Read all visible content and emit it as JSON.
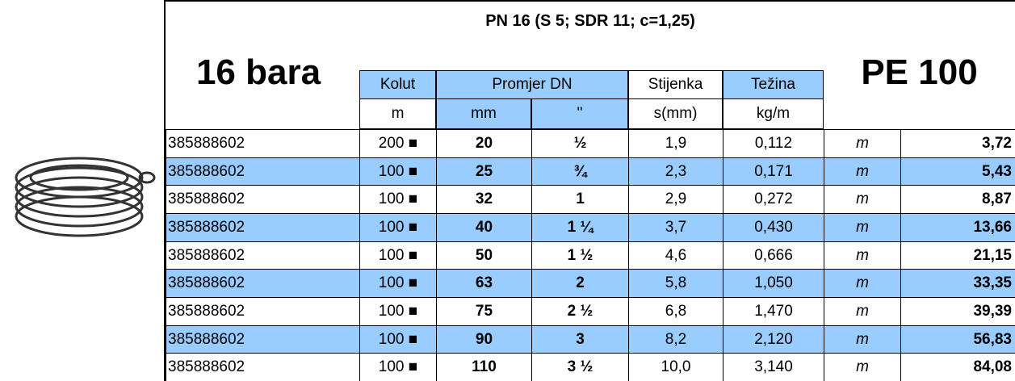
{
  "header": {
    "title": "PN 16   (S 5; SDR 11;  c=1,25)",
    "pressure": "16 bara",
    "material": "PE 100"
  },
  "columns": {
    "kolut": "Kolut",
    "kolut_unit": "m",
    "promjer": "Promjer DN",
    "mm": "mm",
    "inch": "''",
    "stijenka": "Stijenka",
    "stijenka_unit": "s(mm)",
    "tezina": "Težina",
    "tezina_unit": "kg/m"
  },
  "table": {
    "rows": [
      [
        "385888602",
        "200 ■",
        "20",
        "½",
        "1,9",
        "0,112",
        "m",
        "3,72"
      ],
      [
        "385888602",
        "100 ■",
        "25",
        "¾",
        "2,3",
        "0,171",
        "m",
        "5,43"
      ],
      [
        "385888602",
        "100 ■",
        "32",
        "1",
        "2,9",
        "0,272",
        "m",
        "8,87"
      ],
      [
        "385888602",
        "100 ■",
        "40",
        "1 ¼",
        "3,7",
        "0,430",
        "m",
        "13,66"
      ],
      [
        "385888602",
        "100 ■",
        "50",
        "1 ½",
        "4,6",
        "0,666",
        "m",
        "21,15"
      ],
      [
        "385888602",
        "100 ■",
        "63",
        "2",
        "5,8",
        "1,050",
        "m",
        "33,35"
      ],
      [
        "385888602",
        "100 ■",
        "75",
        "2 ½",
        "6,8",
        "1,470",
        "m",
        "39,39"
      ],
      [
        "385888602",
        "100 ■",
        "90",
        "3",
        "8,2",
        "2,120",
        "m",
        "56,83"
      ],
      [
        "385888602",
        "100 ■",
        "110",
        "3 ½",
        "10,0",
        "3,140",
        "m",
        "84,08"
      ]
    ]
  }
}
